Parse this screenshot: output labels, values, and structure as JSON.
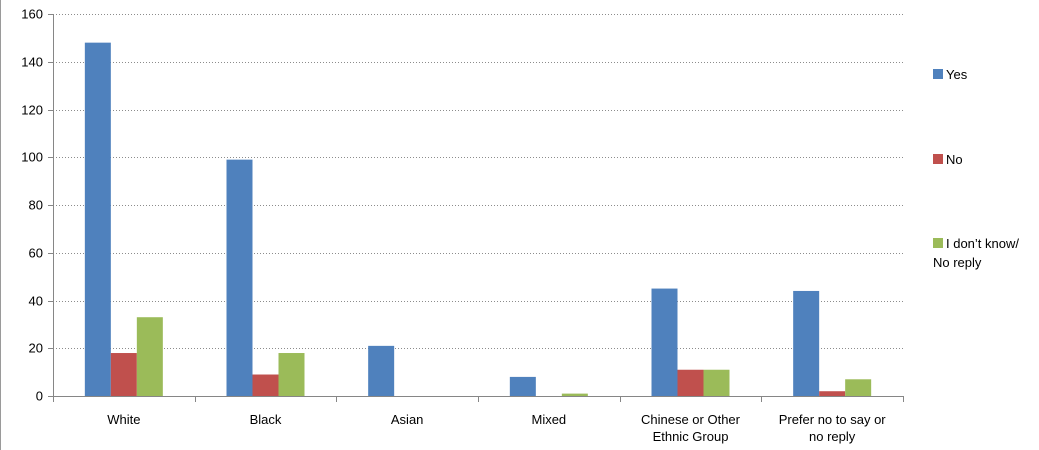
{
  "chart_data": {
    "type": "bar",
    "categories": [
      [
        "White"
      ],
      [
        "Black"
      ],
      [
        "Asian"
      ],
      [
        "Mixed"
      ],
      [
        "Chinese or Other",
        "Ethnic Group"
      ],
      [
        "Prefer no to say or",
        "no reply"
      ]
    ],
    "series": [
      {
        "name": "Yes",
        "color": "#4f81bd",
        "values": [
          148,
          99,
          21,
          8,
          45,
          44
        ]
      },
      {
        "name": "No",
        "color": "#c0504d",
        "values": [
          18,
          9,
          0,
          0,
          11,
          2
        ]
      },
      {
        "name_lines": [
          "I don’t know/",
          "No reply"
        ],
        "color": "#9bbb59",
        "values": [
          33,
          18,
          0,
          1,
          11,
          7
        ]
      }
    ],
    "ylim": [
      0,
      160
    ],
    "yticks": [
      "0",
      "20",
      "40",
      "60",
      "80",
      "100",
      "120",
      "140",
      "160"
    ],
    "grid": true,
    "legend_position": "right"
  }
}
